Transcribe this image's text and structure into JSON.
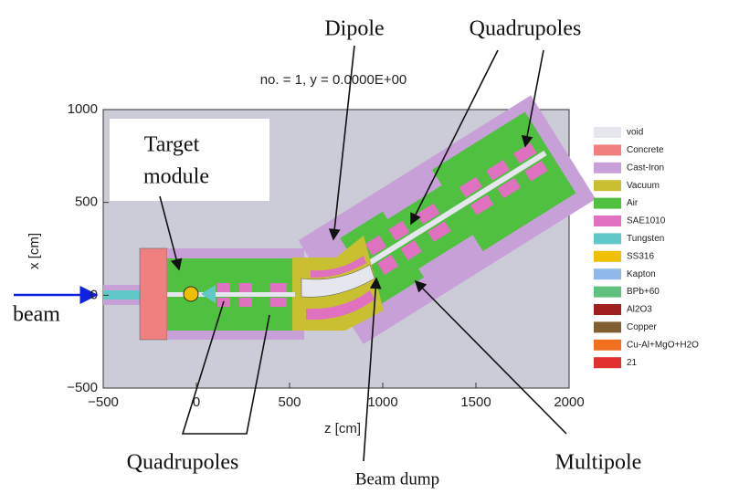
{
  "header": "no. =  1,    y =    0.0000E+00",
  "axes": {
    "x_label": "z [cm]",
    "y_label": "x [cm]",
    "xlim": [
      -500,
      2000
    ],
    "ylim": [
      -500,
      1000
    ],
    "xticks": [
      {
        "value": -500,
        "label": "−500"
      },
      0,
      500,
      1000,
      1500,
      2000
    ],
    "yticks": [
      {
        "value": -500,
        "label": "−500"
      },
      0,
      500,
      1000
    ]
  },
  "legend": [
    {
      "label": "void",
      "color": "#e6e6ee"
    },
    {
      "label": "Concrete",
      "color": "#f08080"
    },
    {
      "label": "Cast-Iron",
      "color": "#c8a0d8"
    },
    {
      "label": "Vacuum",
      "color": "#c8c030"
    },
    {
      "label": "Air",
      "color": "#50c040"
    },
    {
      "label": "SAE1010",
      "color": "#e070c0"
    },
    {
      "label": "Tungsten",
      "color": "#60c8c8"
    },
    {
      "label": "SS316",
      "color": "#f0c000"
    },
    {
      "label": "Kapton",
      "color": "#90b8e8"
    },
    {
      "label": "BPb+60",
      "color": "#60c080"
    },
    {
      "label": "Al2O3",
      "color": "#a02020"
    },
    {
      "label": "Copper",
      "color": "#806030"
    },
    {
      "label": "Cu-Al+MgO+H2O",
      "color": "#f07020"
    },
    {
      "label": "21",
      "color": "#e03030"
    }
  ],
  "annotations": {
    "target": [
      "Target",
      "module"
    ],
    "dipole": "Dipole",
    "quadrupoles_top": "Quadrupoles",
    "beam": "beam",
    "quadrupoles_bottom": "Quadrupoles",
    "beam_dump": "Beam dump",
    "multipole": "Multipole"
  }
}
